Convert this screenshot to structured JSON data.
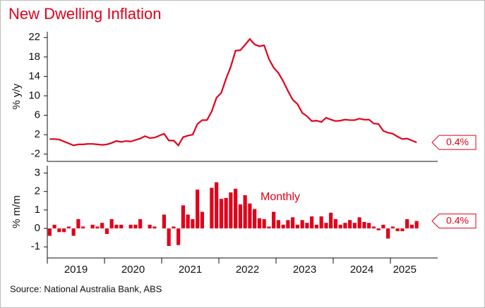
{
  "title": "New Dwelling Inflation",
  "source": "Source: National Australia Bank, ABS",
  "chart_data": [
    {
      "type": "line",
      "ylabel": "% y/y",
      "color": "#e2001a",
      "ylim": [
        -3.5,
        23.2
      ],
      "yticks": [
        -2,
        2,
        6,
        10,
        14,
        18,
        22
      ],
      "values": [
        1.1,
        1.1,
        1.0,
        0.6,
        0.2,
        -0.2,
        0.0,
        0.0,
        0.1,
        0.1,
        0.0,
        -0.1,
        0.0,
        0.3,
        0.7,
        0.5,
        0.7,
        0.6,
        0.9,
        1.2,
        1.7,
        1.3,
        1.4,
        1.8,
        2.2,
        0.8,
        0.8,
        -0.2,
        1.5,
        1.8,
        2.0,
        4.2,
        5.0,
        5.0,
        6.8,
        9.6,
        10.6,
        13.5,
        16.0,
        19.3,
        19.4,
        20.5,
        21.7,
        20.6,
        20.2,
        20.4,
        17.6,
        15.8,
        14.7,
        13.0,
        11.0,
        9.2,
        8.3,
        6.5,
        5.8,
        4.8,
        4.9,
        4.6,
        5.5,
        5.1,
        4.8,
        4.9,
        5.1,
        5.0,
        5.0,
        5.3,
        5.1,
        5.1,
        4.3,
        4.2,
        2.8,
        2.4,
        2.2,
        1.6,
        1.1,
        1.2,
        0.8,
        0.4
      ],
      "value_labels": [
        null,
        null,
        null,
        null,
        null,
        null,
        null,
        null,
        null,
        null,
        null,
        null,
        null,
        null,
        null,
        null,
        null,
        null,
        null,
        null,
        null,
        null,
        null,
        null,
        null,
        null,
        null,
        null,
        null,
        null,
        null,
        null,
        null,
        null,
        null,
        null,
        null,
        null,
        null,
        null,
        null,
        null,
        null,
        null,
        null,
        null,
        null,
        null,
        null,
        null,
        null,
        null,
        null,
        null,
        null,
        null,
        null,
        null,
        null,
        null,
        null,
        null,
        null,
        null,
        null,
        null,
        null,
        null,
        null,
        null,
        null,
        null,
        null,
        null,
        null,
        null,
        null,
        "0.4%"
      ]
    },
    {
      "type": "bar",
      "ylabel": "% m/m",
      "annotation": "Monthly",
      "color": "#e2001a",
      "ylim": [
        -1.6,
        3.4
      ],
      "yticks": [
        -1,
        0,
        1,
        2,
        3
      ],
      "categories": [
        "2019",
        "2019",
        "2019",
        "2019",
        "2019",
        "2019",
        "2019",
        "2019",
        "2019",
        "2019",
        "2019",
        "2019",
        "2020",
        "2020",
        "2020",
        "2020",
        "2020",
        "2020",
        "2020",
        "2020",
        "2020",
        "2020",
        "2020",
        "2020",
        "2021",
        "2021",
        "2021",
        "2021",
        "2021",
        "2021",
        "2021",
        "2021",
        "2021",
        "2021",
        "2021",
        "2021",
        "2022",
        "2022",
        "2022",
        "2022",
        "2022",
        "2022",
        "2022",
        "2022",
        "2022",
        "2022",
        "2022",
        "2022",
        "2023",
        "2023",
        "2023",
        "2023",
        "2023",
        "2023",
        "2023",
        "2023",
        "2023",
        "2023",
        "2023",
        "2023",
        "2024",
        "2024",
        "2024",
        "2024",
        "2024",
        "2024",
        "2024",
        "2024",
        "2024",
        "2024",
        "2024",
        "2024",
        "2025",
        "2025",
        "2025",
        "2025",
        "2025",
        "2025"
      ],
      "values": [
        -0.4,
        0.2,
        -0.2,
        -0.2,
        0.1,
        -0.4,
        0.5,
        0.1,
        0.0,
        0.2,
        0.1,
        0.3,
        -0.3,
        0.5,
        0.2,
        0.2,
        0.0,
        0.2,
        0.2,
        0.5,
        0.0,
        0.2,
        0.1,
        0.0,
        0.75,
        -0.95,
        0.1,
        -0.9,
        1.25,
        0.75,
        0.5,
        2.1,
        0.9,
        0.0,
        2.2,
        2.5,
        1.6,
        1.65,
        1.95,
        2.15,
        1.3,
        1.8,
        1.35,
        1.05,
        0.55,
        0.5,
        0.1,
        0.9,
        0.45,
        0.2,
        0.45,
        0.6,
        0.2,
        0.45,
        0.3,
        0.65,
        0.2,
        0.65,
        0.3,
        0.85,
        0.5,
        0.2,
        0.3,
        0.45,
        0.3,
        0.6,
        0.35,
        0.3,
        0.1,
        -0.1,
        0.2,
        -0.55,
        0.1,
        -0.15,
        -0.15,
        0.5,
        0.2,
        0.4
      ],
      "value_labels": [
        null,
        null,
        null,
        null,
        null,
        null,
        null,
        null,
        null,
        null,
        null,
        null,
        null,
        null,
        null,
        null,
        null,
        null,
        null,
        null,
        null,
        null,
        null,
        null,
        null,
        null,
        null,
        null,
        null,
        null,
        null,
        null,
        null,
        null,
        null,
        null,
        null,
        null,
        null,
        null,
        null,
        null,
        null,
        null,
        null,
        null,
        null,
        null,
        null,
        null,
        null,
        null,
        null,
        null,
        null,
        null,
        null,
        null,
        null,
        null,
        null,
        null,
        null,
        null,
        null,
        null,
        null,
        null,
        null,
        null,
        null,
        null,
        null,
        null,
        null,
        null,
        null,
        "0.4%"
      ]
    }
  ]
}
